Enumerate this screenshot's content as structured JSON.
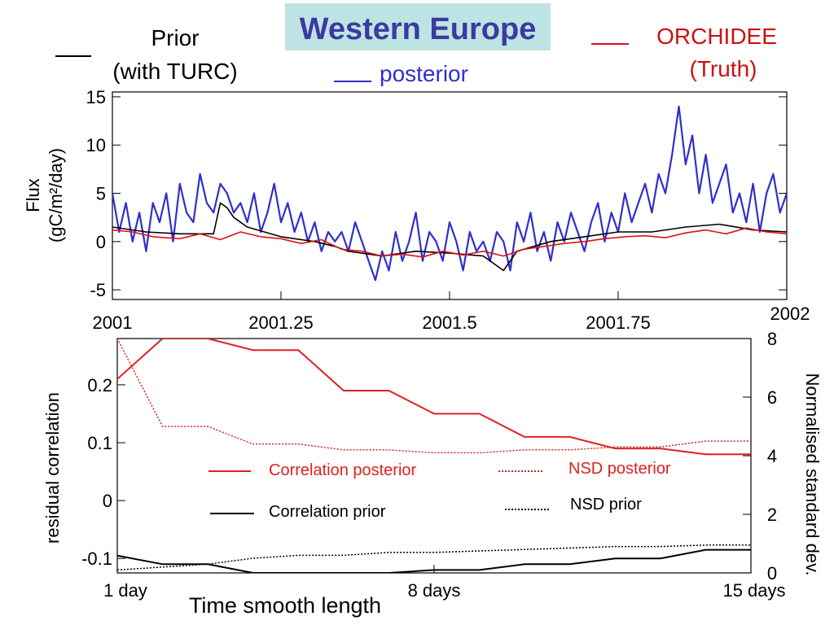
{
  "colors": {
    "title_box": "#bde3e3",
    "title_text": "#3a3aa0",
    "posterior": "#2f2fcc",
    "orchidee": "#dd1111",
    "prior": "#000000",
    "corr_posterior": "#e02020"
  },
  "header": {
    "title": "Western Europe",
    "prior_line1": "Prior",
    "prior_line2": "(with TURC)",
    "posterior": "posterior",
    "orchidee_line1": "ORCHIDEE",
    "orchidee_line2": "(Truth)"
  },
  "chart_data": [
    {
      "type": "line",
      "title": "Western Europe",
      "ylabel_line1": "Flux",
      "ylabel_line2": "(gC/m²/day)",
      "xlim": [
        2001,
        2002
      ],
      "ylim": [
        -6,
        15.5
      ],
      "xticks": [
        2001,
        2001.25,
        2001.5,
        2001.75,
        2002
      ],
      "xtick_labels": [
        "2001",
        "2001.25",
        "2001.5",
        "2001.75",
        "2002"
      ],
      "yticks": [
        -5,
        0,
        5,
        10,
        15
      ],
      "ytick_labels": [
        "-5",
        "0",
        "5",
        "10",
        "15"
      ],
      "series": [
        {
          "name": "posterior",
          "color": "#2f2fcc",
          "x": [
            2001.0,
            2001.01,
            2001.02,
            2001.03,
            2001.04,
            2001.05,
            2001.06,
            2001.07,
            2001.08,
            2001.09,
            2001.1,
            2001.11,
            2001.12,
            2001.13,
            2001.14,
            2001.15,
            2001.16,
            2001.17,
            2001.18,
            2001.19,
            2001.2,
            2001.21,
            2001.22,
            2001.23,
            2001.24,
            2001.25,
            2001.26,
            2001.27,
            2001.28,
            2001.29,
            2001.3,
            2001.31,
            2001.32,
            2001.33,
            2001.34,
            2001.35,
            2001.36,
            2001.37,
            2001.38,
            2001.39,
            2001.4,
            2001.41,
            2001.42,
            2001.43,
            2001.44,
            2001.45,
            2001.46,
            2001.47,
            2001.48,
            2001.49,
            2001.5,
            2001.51,
            2001.52,
            2001.53,
            2001.54,
            2001.55,
            2001.56,
            2001.57,
            2001.58,
            2001.59,
            2001.6,
            2001.61,
            2001.62,
            2001.63,
            2001.64,
            2001.65,
            2001.66,
            2001.67,
            2001.68,
            2001.69,
            2001.7,
            2001.71,
            2001.72,
            2001.73,
            2001.74,
            2001.75,
            2001.76,
            2001.77,
            2001.78,
            2001.79,
            2001.8,
            2001.81,
            2001.82,
            2001.83,
            2001.84,
            2001.85,
            2001.86,
            2001.87,
            2001.88,
            2001.89,
            2001.9,
            2001.91,
            2001.92,
            2001.93,
            2001.94,
            2001.95,
            2001.96,
            2001.97,
            2001.98,
            2001.99,
            2002.0
          ],
          "y": [
            5,
            1,
            4,
            0,
            3,
            -1,
            4,
            2,
            5,
            0,
            6,
            3,
            2,
            7,
            4,
            3,
            6,
            5,
            3,
            4,
            2,
            5,
            1,
            3,
            6,
            2,
            4,
            1,
            3,
            0,
            2,
            -1,
            1,
            0,
            1,
            -1,
            2,
            0,
            -2,
            -4,
            -1,
            -3,
            1,
            -2,
            0,
            3,
            -2,
            1,
            0,
            -2,
            2,
            0,
            -3,
            1,
            -1,
            0,
            -2,
            1,
            0,
            -3,
            2,
            0,
            3,
            -1,
            1,
            -2,
            2,
            0,
            3,
            1,
            -1,
            2,
            4,
            0,
            3,
            1,
            5,
            2,
            4,
            6,
            3,
            7,
            5,
            9,
            14,
            8,
            11,
            5,
            9,
            4,
            6,
            8,
            3,
            5,
            2,
            6,
            1,
            5,
            7,
            3,
            5
          ]
        },
        {
          "name": "Prior (with TURC)",
          "color": "#000000",
          "x": [
            2001.0,
            2001.05,
            2001.1,
            2001.15,
            2001.16,
            2001.17,
            2001.18,
            2001.2,
            2001.25,
            2001.3,
            2001.33,
            2001.35,
            2001.4,
            2001.45,
            2001.5,
            2001.55,
            2001.58,
            2001.6,
            2001.65,
            2001.7,
            2001.75,
            2001.8,
            2001.85,
            2001.9,
            2001.95,
            2002.0
          ],
          "y": [
            1.5,
            1,
            0.8,
            0.8,
            4,
            3.5,
            2.5,
            1.5,
            0.5,
            0,
            -0.5,
            -1,
            -1.5,
            -1,
            -1.2,
            -1.5,
            -3,
            -1,
            0,
            0.5,
            1,
            1,
            1.5,
            1.8,
            1.2,
            1
          ]
        },
        {
          "name": "ORCHIDEE",
          "color": "#dd1111",
          "x": [
            2001.0,
            2001.03,
            2001.06,
            2001.1,
            2001.13,
            2001.16,
            2001.19,
            2001.22,
            2001.25,
            2001.28,
            2001.31,
            2001.34,
            2001.37,
            2001.4,
            2001.43,
            2001.46,
            2001.49,
            2001.52,
            2001.55,
            2001.58,
            2001.61,
            2001.64,
            2001.67,
            2001.7,
            2001.73,
            2001.76,
            2001.79,
            2001.82,
            2001.85,
            2001.88,
            2001.91,
            2001.94,
            2001.97,
            2002.0
          ],
          "y": [
            1.2,
            1,
            0.5,
            0.3,
            0.8,
            0.2,
            1,
            0.5,
            0.3,
            -0.2,
            0.2,
            -0.8,
            -1,
            -1.5,
            -1.3,
            -1.6,
            -1,
            -1.4,
            -1,
            -1.5,
            -0.8,
            -0.5,
            -0.2,
            0,
            0.3,
            0.5,
            0.6,
            0.4,
            0.9,
            1.2,
            0.8,
            1.4,
            1,
            0.8
          ]
        }
      ]
    },
    {
      "type": "line",
      "xlabel": "Time smooth length",
      "ylabel": "residual correlation",
      "y2label": "Normalised standard dev.",
      "xlim": [
        1,
        15
      ],
      "ylim": [
        -0.125,
        0.28
      ],
      "y2lim": [
        0,
        8
      ],
      "xticks": [
        1,
        8,
        15
      ],
      "xtick_labels": [
        "1 day",
        "8 days",
        "15 days"
      ],
      "yticks": [
        -0.1,
        0,
        0.1,
        0.2
      ],
      "ytick_labels": [
        "-0.1",
        "0",
        "0.1",
        "0.2"
      ],
      "y2ticks": [
        0,
        2,
        4,
        6,
        8
      ],
      "y2tick_labels": [
        "0",
        "2",
        "4",
        "6",
        "8"
      ],
      "x": [
        1,
        2,
        3,
        4,
        5,
        6,
        7,
        8,
        9,
        10,
        11,
        12,
        13,
        14,
        15
      ],
      "series": [
        {
          "name": "Correlation posterior",
          "axis": "left",
          "style": "solid",
          "color": "#e02020",
          "values": [
            0.21,
            0.28,
            0.28,
            0.26,
            0.26,
            0.19,
            0.19,
            0.15,
            0.15,
            0.11,
            0.11,
            0.09,
            0.09,
            0.08,
            0.08
          ]
        },
        {
          "name": "NSD posterior",
          "axis": "right",
          "style": "dotted",
          "color": "#e02020",
          "values": [
            8,
            5,
            5,
            4.4,
            4.4,
            4.2,
            4.2,
            4.1,
            4.1,
            4.2,
            4.2,
            4.3,
            4.3,
            4.5,
            4.5
          ]
        },
        {
          "name": "Correlation prior",
          "axis": "left",
          "style": "solid",
          "color": "#000000",
          "values": [
            -0.095,
            -0.11,
            -0.11,
            -0.125,
            -0.125,
            -0.125,
            -0.125,
            -0.12,
            -0.12,
            -0.11,
            -0.11,
            -0.1,
            -0.1,
            -0.085,
            -0.085
          ]
        },
        {
          "name": "NSD prior",
          "axis": "right",
          "style": "dotted",
          "color": "#000000",
          "values": [
            0.1,
            0.2,
            0.3,
            0.5,
            0.6,
            0.6,
            0.7,
            0.7,
            0.75,
            0.8,
            0.85,
            0.9,
            0.9,
            0.95,
            0.95
          ]
        }
      ]
    }
  ]
}
